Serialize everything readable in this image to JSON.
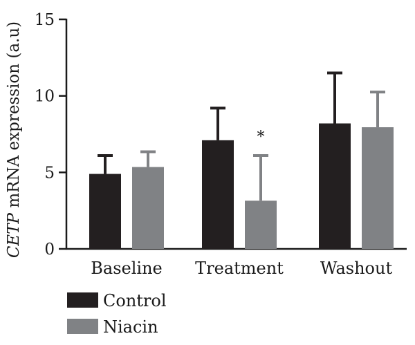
{
  "chart_data": {
    "type": "bar",
    "title": "",
    "ylabel_italic": "CETP",
    "ylabel_rest": " mRNA expression (a.u)",
    "ylim": [
      0,
      15
    ],
    "yticks": [
      0,
      5,
      10,
      15
    ],
    "categories": [
      "Baseline",
      "Treatment",
      "Washout"
    ],
    "series": [
      {
        "name": "Control",
        "color": "#231f20",
        "values": [
          4.9,
          7.1,
          8.2
        ],
        "errors": [
          1.2,
          2.1,
          3.3
        ]
      },
      {
        "name": "Niacin",
        "color": "#808285",
        "values": [
          5.35,
          3.15,
          7.95
        ],
        "errors": [
          1.0,
          2.95,
          2.3
        ]
      }
    ],
    "annotations": [
      {
        "category": "Treatment",
        "series": "Niacin",
        "text": "*"
      }
    ],
    "legend_position": "bottom-left",
    "grid": false
  }
}
